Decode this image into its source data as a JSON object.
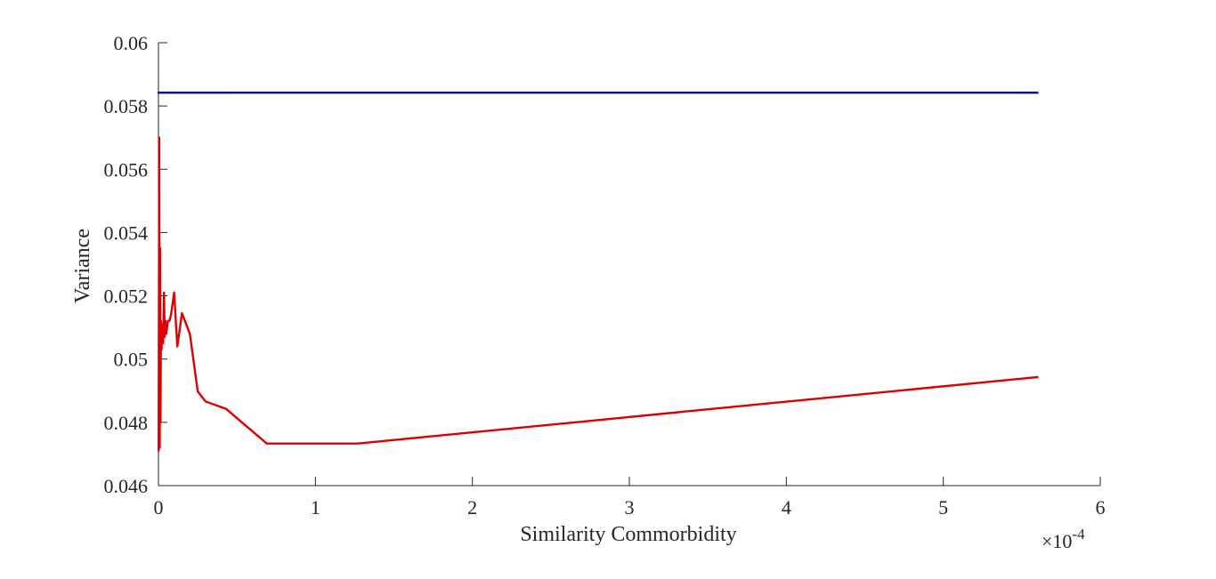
{
  "chart_data": {
    "type": "line",
    "title": "",
    "xlabel": "Similarity Commorbidity",
    "ylabel": "Variance",
    "x_exponent_label": {
      "base": "×10",
      "exponent": "-4"
    },
    "xlim": [
      0,
      6
    ],
    "ylim": [
      0.046,
      0.06
    ],
    "xticks": [
      0,
      1,
      2,
      3,
      4,
      5,
      6
    ],
    "xtick_labels": [
      "0",
      "1",
      "2",
      "3",
      "4",
      "5",
      "6"
    ],
    "yticks": [
      0.046,
      0.048,
      0.05,
      0.052,
      0.054,
      0.056,
      0.058,
      0.06
    ],
    "ytick_labels": [
      "0.046",
      "0.048",
      "0.05",
      "0.052",
      "0.054",
      "0.056",
      "0.058",
      "0.06"
    ],
    "grid": false,
    "series": [
      {
        "color": "#0000cc",
        "x": [
          0,
          5.6
        ],
        "y": [
          0.05842,
          0.05842
        ]
      },
      {
        "color": "#dd0000",
        "x": [
          0.001,
          0.005,
          0.008,
          0.01,
          0.013,
          0.016,
          0.02,
          0.025,
          0.03,
          0.035,
          0.04,
          0.045,
          0.05,
          0.06,
          0.07,
          0.08,
          0.1,
          0.12,
          0.15,
          0.2,
          0.25,
          0.3,
          0.43,
          0.69,
          1.27,
          5.6
        ],
        "y": [
          0.0471,
          0.057,
          0.0472,
          0.0535,
          0.048,
          0.0512,
          0.0503,
          0.0511,
          0.0505,
          0.0521,
          0.0507,
          0.0512,
          0.0508,
          0.0512,
          0.0512,
          0.0514,
          0.0521,
          0.0504,
          0.05145,
          0.0508,
          0.04898,
          0.04866,
          0.04843,
          0.04733,
          0.04733,
          0.04943
        ]
      }
    ]
  }
}
